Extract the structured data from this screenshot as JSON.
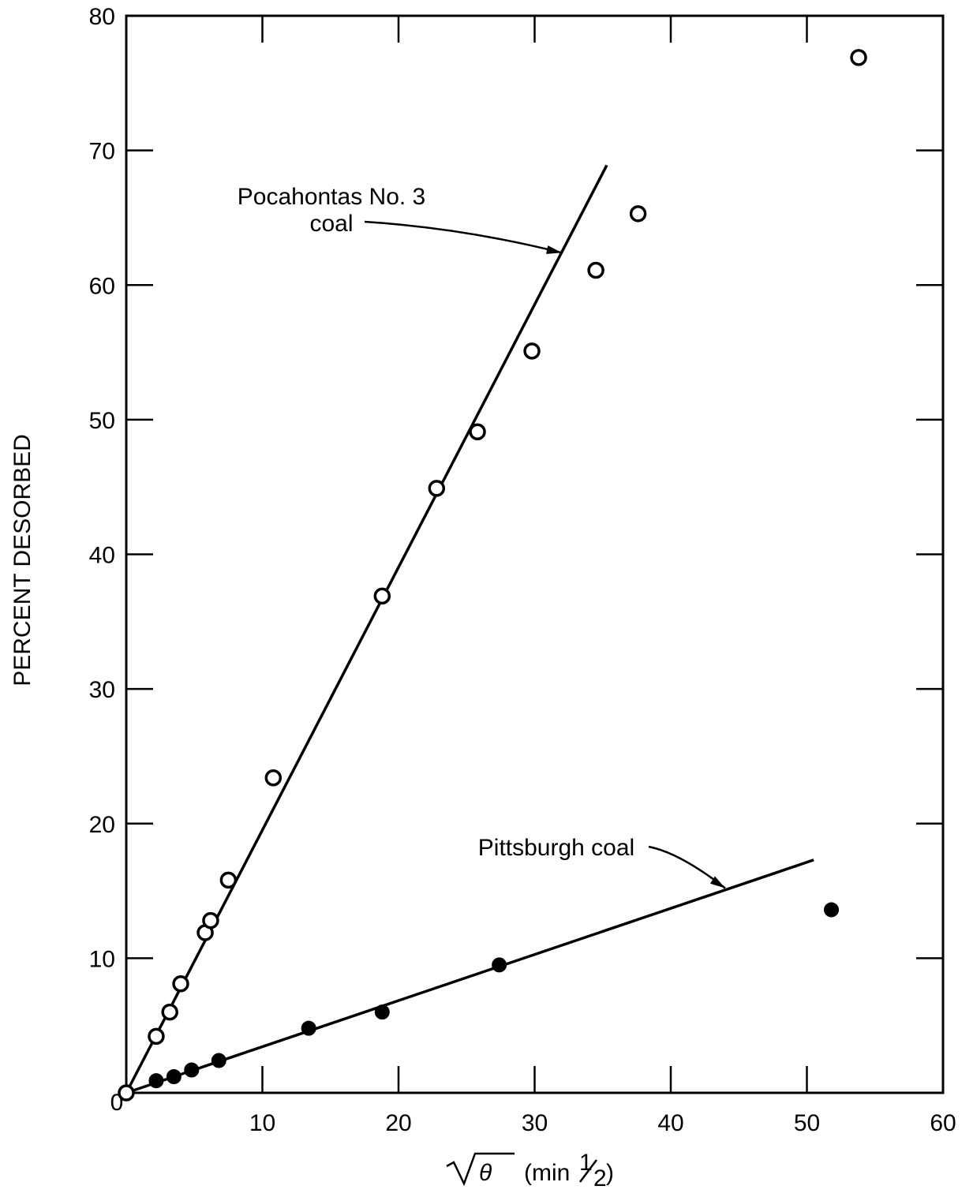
{
  "chart_data": {
    "type": "scatter",
    "xlabel": "√θ  (min½)",
    "xlabel_parts": {
      "symbol": "θ",
      "unit_open": "(min",
      "unit_sup": "1",
      "unit_sub": "2",
      "unit_close": ")"
    },
    "ylabel": "PERCENT DESORBED",
    "xlim": [
      0,
      60
    ],
    "ylim": [
      0,
      80
    ],
    "x_ticks": [
      10,
      20,
      30,
      40,
      50,
      60
    ],
    "y_ticks": [
      0,
      10,
      20,
      30,
      40,
      50,
      60,
      70,
      80
    ],
    "origin_label": "0",
    "grid": false,
    "series": [
      {
        "name": "Pocahontas No. 3 coal",
        "marker": "open-circle",
        "points": [
          [
            0,
            0
          ],
          [
            2.2,
            4.2
          ],
          [
            3.2,
            6.0
          ],
          [
            4.0,
            8.1
          ],
          [
            5.8,
            11.9
          ],
          [
            6.2,
            12.8
          ],
          [
            7.5,
            15.8
          ],
          [
            10.8,
            23.4
          ],
          [
            18.8,
            36.9
          ],
          [
            22.8,
            44.9
          ],
          [
            25.8,
            49.1
          ],
          [
            29.8,
            55.1
          ],
          [
            34.5,
            61.1
          ],
          [
            37.6,
            65.3
          ],
          [
            53.8,
            76.9
          ]
        ],
        "fit_line": [
          [
            0,
            0
          ],
          [
            35.3,
            68.9
          ]
        ]
      },
      {
        "name": "Pittsburgh coal",
        "marker": "filled-circle",
        "points": [
          [
            2.2,
            0.9
          ],
          [
            3.5,
            1.2
          ],
          [
            4.8,
            1.7
          ],
          [
            6.8,
            2.4
          ],
          [
            13.4,
            4.8
          ],
          [
            18.8,
            6.0
          ],
          [
            27.4,
            9.5
          ],
          [
            51.8,
            13.6
          ]
        ],
        "fit_line": [
          [
            0,
            0
          ],
          [
            50.5,
            17.3
          ]
        ]
      }
    ],
    "annotations": [
      {
        "text_lines": [
          "Pocahontas No. 3",
          "coal"
        ],
        "points_to": [
          32.0,
          62.4
        ]
      },
      {
        "text_lines": [
          "Pittsburgh coal"
        ],
        "points_to": [
          44.0,
          15.2
        ]
      }
    ]
  }
}
